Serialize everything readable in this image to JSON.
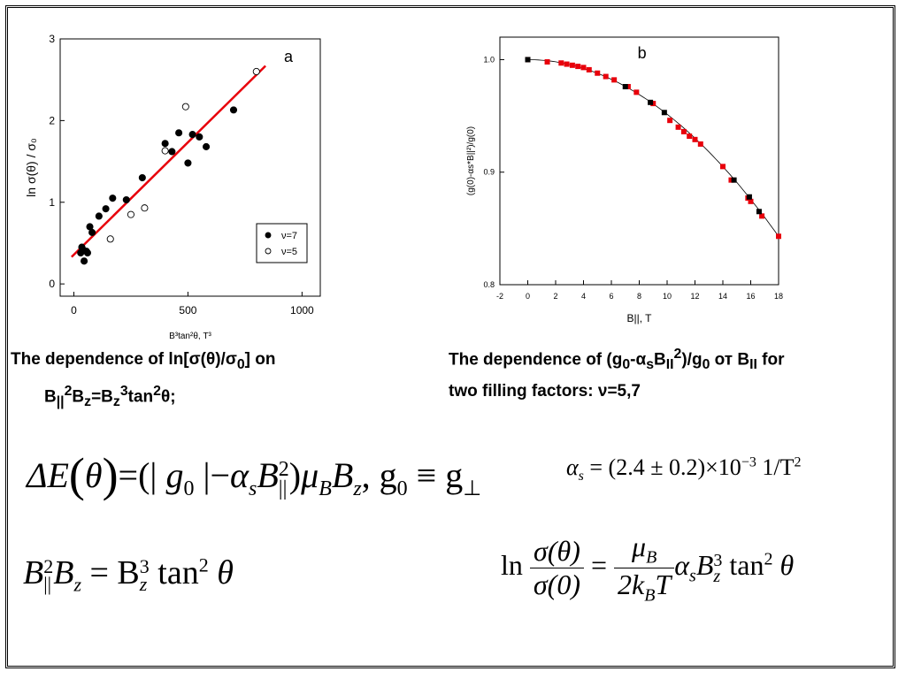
{
  "chart_data": [
    {
      "type": "scatter",
      "panel_label": "a",
      "xlabel": "B³tan²θ, T³",
      "ylabel": "ln σ(θ) / σ₀",
      "xlim": [
        -60,
        1080
      ],
      "ylim": [
        -0.15,
        3
      ],
      "xticks": [
        0,
        500,
        1000
      ],
      "yticks": [
        0,
        1,
        2,
        3
      ],
      "grid": false,
      "legend_position": "bottom-right",
      "series": [
        {
          "name": "ν=7",
          "marker": "filled-circle",
          "color": "#000000",
          "points": [
            [
              30,
              0.38
            ],
            [
              35,
              0.45
            ],
            [
              40,
              0.42
            ],
            [
              45,
              0.28
            ],
            [
              55,
              0.4
            ],
            [
              60,
              0.38
            ],
            [
              70,
              0.7
            ],
            [
              80,
              0.63
            ],
            [
              110,
              0.83
            ],
            [
              140,
              0.92
            ],
            [
              170,
              1.05
            ],
            [
              230,
              1.03
            ],
            [
              300,
              1.3
            ],
            [
              400,
              1.72
            ],
            [
              430,
              1.62
            ],
            [
              460,
              1.85
            ],
            [
              500,
              1.48
            ],
            [
              520,
              1.83
            ],
            [
              550,
              1.8
            ],
            [
              580,
              1.68
            ],
            [
              700,
              2.13
            ]
          ]
        },
        {
          "name": "ν=5",
          "marker": "open-circle",
          "color": "#000000",
          "points": [
            [
              160,
              0.55
            ],
            [
              250,
              0.85
            ],
            [
              310,
              0.93
            ],
            [
              400,
              1.63
            ],
            [
              490,
              2.17
            ],
            [
              800,
              2.6
            ]
          ]
        }
      ],
      "fit_line": {
        "x": [
          -10,
          840
        ],
        "y": [
          0.33,
          2.67
        ],
        "color": "#e8000b"
      }
    },
    {
      "type": "scatter",
      "panel_label": "b",
      "xlabel": "B||, T",
      "ylabel": "(g(0)-αs*B||²)/g(0)",
      "xlim": [
        -2,
        18
      ],
      "ylim": [
        0.8,
        1.02
      ],
      "xticks": [
        -2,
        0,
        2,
        4,
        6,
        8,
        10,
        12,
        14,
        16,
        18
      ],
      "yticks": [
        0.8,
        0.9,
        1.0
      ],
      "grid": false,
      "series": [
        {
          "name": "",
          "marker": "filled-square",
          "color": "#e8000b",
          "points": [
            [
              0,
              1.0
            ],
            [
              1.4,
              0.998
            ],
            [
              2.4,
              0.997
            ],
            [
              2.8,
              0.996
            ],
            [
              3.2,
              0.995
            ],
            [
              3.6,
              0.994
            ],
            [
              4.0,
              0.993
            ],
            [
              4.4,
              0.991
            ],
            [
              5.0,
              0.988
            ],
            [
              5.6,
              0.985
            ],
            [
              6.2,
              0.982
            ],
            [
              7.2,
              0.976
            ],
            [
              7.8,
              0.971
            ],
            [
              9.0,
              0.961
            ],
            [
              10.2,
              0.946
            ],
            [
              10.8,
              0.94
            ],
            [
              11.2,
              0.936
            ],
            [
              11.6,
              0.932
            ],
            [
              12.0,
              0.929
            ],
            [
              12.4,
              0.925
            ],
            [
              14.0,
              0.905
            ],
            [
              14.6,
              0.893
            ],
            [
              15.8,
              0.877
            ],
            [
              16.0,
              0.874
            ],
            [
              16.8,
              0.861
            ],
            [
              18,
              0.843
            ]
          ]
        },
        {
          "name": "",
          "marker": "filled-square",
          "color": "#000000",
          "points": [
            [
              0,
              1.0
            ],
            [
              7.0,
              0.976
            ],
            [
              8.8,
              0.962
            ],
            [
              9.8,
              0.953
            ],
            [
              14.8,
              0.893
            ],
            [
              15.9,
              0.878
            ],
            [
              16.6,
              0.865
            ]
          ]
        }
      ],
      "fit_curve": {
        "type": "parabola",
        "a": 0.000485,
        "color": "#000000"
      }
    }
  ],
  "captions": {
    "left_line1_pre": "The dependence of ln[σ(θ)/σ",
    "left_line1_sub": "0",
    "left_line1_post": "] on",
    "left_line2": {
      "b1": "B",
      "sub1": "||",
      "sup1": "2",
      "b2": "B",
      "sub2": "z",
      "eq": "=B",
      "sub3": "z",
      "sup3": "3",
      "tail": "tan",
      "sup4": "2",
      "end": "θ;"
    },
    "right_line1": {
      "pre": "The dependence of  (g",
      "sub1": "0",
      "mid": "-α",
      "sub2": "s",
      "b": "B",
      "sub3": "II",
      "sup": "2",
      "post": ")/g",
      "sub4": "0",
      "tail": "  от B",
      "sub5": "II",
      "end": " for"
    },
    "right_line2": "two filling factors: ν=5,7"
  },
  "equations": {
    "eq1": {
      "delta": "ΔE",
      "theta": "θ",
      "eq": "=",
      "abs_open": "(| ",
      "g": "g",
      "g_sub": "0",
      "abs_close": " |−",
      "alpha": "α",
      "alpha_sub": "s",
      "B": "B",
      "B_sub": "||",
      "B_sup": "2",
      "close": ")",
      "mu": "μ",
      "mu_sub": "B",
      "Bz": "B",
      "Bz_sub": "z",
      "comma": ",  g",
      "g0_sub": "0",
      "equiv": " ≡ g",
      "perp": "⊥"
    },
    "eq2": {
      "alpha": "α",
      "sub": "s",
      "rhs": " = (2.4 ± 0.2)×10",
      "exp": "−3",
      "unit": "  1/T",
      "unit_sup": "2"
    },
    "eq3": {
      "B": "B",
      "sub1": "||",
      "sup1": "2",
      "B2": "B",
      "sub2": "z",
      "eq": " = B",
      "sub3": "z",
      "sup3": "3",
      "tan": " tan",
      "sup4": "2",
      "theta": " θ"
    },
    "eq4": {
      "ln": "ln",
      "num": "σ(θ)",
      "den": "σ(0)",
      "eq": "=",
      "num2": "μ",
      "num2_sub": "B",
      "den2": "2k",
      "den2_sub": "B",
      "den2_T": "T",
      "alpha": "α",
      "alpha_sub": "s",
      "B": "B",
      "B_sub": "z",
      "B_sup": "3",
      "tan": " tan",
      "tan_sup": "2",
      "theta": " θ"
    }
  }
}
